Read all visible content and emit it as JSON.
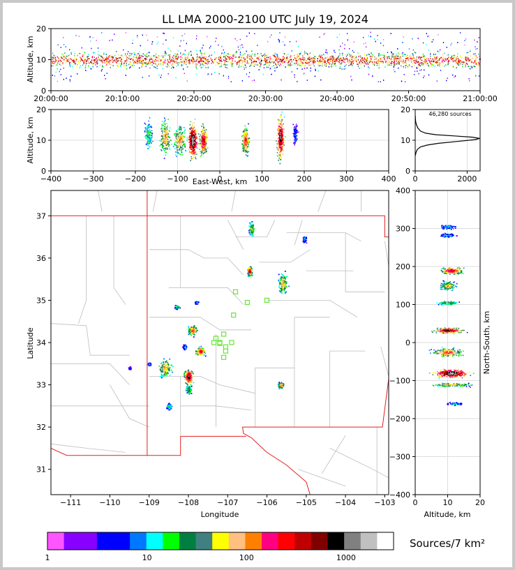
{
  "title": "LL LMA 2000-2100 UTC July 19, 2024",
  "colorbar": {
    "label": "Sources/7 km²",
    "tick_labels": [
      "1",
      "10",
      "100",
      "1000"
    ],
    "tick_values": [
      1,
      10,
      100,
      1000
    ],
    "colors": [
      "#ff55ff",
      "#8800ff",
      "#8800ff",
      "#0000ff",
      "#0000ff",
      "#0077ff",
      "#00ffff",
      "#00ff00",
      "#008040",
      "#408080",
      "#ffff00",
      "#ffc080",
      "#ff8000",
      "#ff0080",
      "#ff0000",
      "#c00000",
      "#800000",
      "#000000",
      "#808080",
      "#c0c0c0",
      "#ffffff"
    ]
  },
  "chart_data": [
    {
      "id": "time-altitude",
      "type": "heatmap",
      "ylabel": "Altitude, km",
      "xlim": [
        "20:00:00",
        "21:00:00"
      ],
      "ylim": [
        0,
        20
      ],
      "x_ticks": [
        "20:00:00",
        "20:10:00",
        "20:20:00",
        "20:30:00",
        "20:40:00",
        "20:50:00",
        "21:00:00"
      ],
      "y_ticks": [
        0,
        10,
        20
      ],
      "density": [
        {
          "x": "20:00-21:00",
          "y": [
            5,
            15
          ],
          "peak_altitude": 10
        }
      ]
    },
    {
      "id": "ew-altitude",
      "type": "heatmap",
      "xlabel": "East-West, km",
      "ylabel": "Altitude, km",
      "xlim": [
        -400,
        400
      ],
      "ylim": [
        0,
        20
      ],
      "x_ticks": [
        -400,
        -300,
        -200,
        -100,
        0,
        100,
        200,
        300,
        400
      ],
      "y_ticks": [
        0,
        10,
        20
      ],
      "clusters": [
        {
          "x": -170,
          "y": 12,
          "spread_x": 8,
          "spread_y": 4,
          "intensity": 0.4
        },
        {
          "x": -130,
          "y": 11,
          "spread_x": 12,
          "spread_y": 5,
          "intensity": 0.6
        },
        {
          "x": -95,
          "y": 10,
          "spread_x": 12,
          "spread_y": 4,
          "intensity": 0.6
        },
        {
          "x": -65,
          "y": 10,
          "spread_x": 10,
          "spread_y": 5,
          "intensity": 1.0
        },
        {
          "x": -40,
          "y": 10,
          "spread_x": 8,
          "spread_y": 4,
          "intensity": 0.8
        },
        {
          "x": 60,
          "y": 10,
          "spread_x": 8,
          "spread_y": 4,
          "intensity": 0.7
        },
        {
          "x": 143,
          "y": 11,
          "spread_x": 8,
          "spread_y": 6,
          "intensity": 0.9
        },
        {
          "x": 178,
          "y": 12,
          "spread_x": 5,
          "spread_y": 3,
          "intensity": 0.2
        }
      ]
    },
    {
      "id": "altitude-histogram",
      "type": "line",
      "annotation": "46,280 sources",
      "xlim": [
        0,
        2500
      ],
      "ylim": [
        0,
        20
      ],
      "x_ticks": [
        0,
        2000
      ],
      "y_ticks": [
        0,
        10,
        20
      ],
      "x": [
        5,
        30,
        80,
        200,
        450,
        900,
        1600,
        2300,
        2480,
        2200,
        1500,
        800,
        400,
        200,
        100,
        50,
        20,
        8,
        3
      ],
      "y": [
        5,
        6,
        7,
        7.8,
        8.4,
        9,
        9.6,
        10.2,
        10.6,
        11,
        11.4,
        11.8,
        12.3,
        13,
        14,
        15,
        16,
        17,
        18
      ]
    },
    {
      "id": "plan-view",
      "type": "heatmap",
      "xlabel": "Longitude",
      "ylabel": "Latitude",
      "xlim": [
        -111.5,
        -102.9
      ],
      "ylim": [
        30.4,
        37.6
      ],
      "x_ticks": [
        -111,
        -110,
        -109,
        -108,
        -107,
        -106,
        -105,
        -104,
        -103
      ],
      "y_ticks": [
        31,
        32,
        33,
        34,
        35,
        36,
        37
      ],
      "clusters": [
        {
          "lon": -108.6,
          "lat": 33.4,
          "spread_lon": 0.15,
          "spread_lat": 0.2,
          "intensity": 0.6
        },
        {
          "lon": -108.0,
          "lat": 33.2,
          "spread_lon": 0.1,
          "spread_lat": 0.15,
          "intensity": 0.9
        },
        {
          "lon": -107.9,
          "lat": 34.3,
          "spread_lon": 0.1,
          "spread_lat": 0.1,
          "intensity": 0.7
        },
        {
          "lon": -107.7,
          "lat": 33.8,
          "spread_lon": 0.1,
          "spread_lat": 0.08,
          "intensity": 0.8
        },
        {
          "lon": -108.0,
          "lat": 32.9,
          "spread_lon": 0.06,
          "spread_lat": 0.1,
          "intensity": 0.5
        },
        {
          "lon": -108.5,
          "lat": 32.5,
          "spread_lon": 0.06,
          "spread_lat": 0.06,
          "intensity": 0.4
        },
        {
          "lon": -108.3,
          "lat": 34.85,
          "spread_lon": 0.05,
          "spread_lat": 0.04,
          "intensity": 0.4
        },
        {
          "lon": -106.45,
          "lat": 35.7,
          "spread_lon": 0.05,
          "spread_lat": 0.1,
          "intensity": 0.8
        },
        {
          "lon": -105.6,
          "lat": 35.4,
          "spread_lon": 0.1,
          "spread_lat": 0.2,
          "intensity": 0.6
        },
        {
          "lon": -105.65,
          "lat": 33.0,
          "spread_lon": 0.06,
          "spread_lat": 0.06,
          "intensity": 0.7
        },
        {
          "lon": -106.4,
          "lat": 36.7,
          "spread_lon": 0.06,
          "spread_lat": 0.15,
          "intensity": 0.5
        },
        {
          "lon": -105.05,
          "lat": 36.45,
          "spread_lon": 0.04,
          "spread_lat": 0.06,
          "intensity": 0.3
        },
        {
          "lon": -109.0,
          "lat": 33.5,
          "spread_lon": 0.03,
          "spread_lat": 0.03,
          "intensity": 0.3
        },
        {
          "lon": -109.5,
          "lat": 33.4,
          "spread_lon": 0.03,
          "spread_lat": 0.03,
          "intensity": 0.2
        },
        {
          "lon": -108.1,
          "lat": 33.9,
          "spread_lon": 0.04,
          "spread_lat": 0.05,
          "intensity": 0.3
        },
        {
          "lon": -107.8,
          "lat": 34.95,
          "spread_lon": 0.04,
          "spread_lat": 0.03,
          "intensity": 0.3
        }
      ],
      "stations": [
        {
          "lon": -106.8,
          "lat": 35.2
        },
        {
          "lon": -106.5,
          "lat": 34.95
        },
        {
          "lon": -106.0,
          "lat": 35.0
        },
        {
          "lon": -106.85,
          "lat": 34.65
        },
        {
          "lon": -107.3,
          "lat": 34.1
        },
        {
          "lon": -107.1,
          "lat": 34.2
        },
        {
          "lon": -107.35,
          "lat": 34.0
        },
        {
          "lon": -107.2,
          "lat": 34.0
        },
        {
          "lon": -107.05,
          "lat": 33.9
        },
        {
          "lon": -106.9,
          "lat": 34.0
        },
        {
          "lon": -107.05,
          "lat": 33.8
        },
        {
          "lon": -107.1,
          "lat": 33.65
        },
        {
          "lon": -107.2,
          "lat": 33.98
        }
      ]
    },
    {
      "id": "altitude-ns",
      "type": "heatmap",
      "xlabel": "Altitude, km",
      "ylabel": "North-South, km",
      "xlim": [
        0,
        20
      ],
      "ylim": [
        -400,
        400
      ],
      "x_ticks": [
        0,
        10,
        20
      ],
      "y_ticks": [
        -400,
        -300,
        -200,
        -100,
        0,
        100,
        200,
        300,
        400
      ],
      "clusters": [
        {
          "x": 10,
          "y": 305,
          "spread_x": 2,
          "spread_y": 5,
          "intensity": 0.3
        },
        {
          "x": 10,
          "y": 283,
          "spread_x": 2,
          "spread_y": 4,
          "intensity": 0.3
        },
        {
          "x": 11,
          "y": 190,
          "spread_x": 3,
          "spread_y": 8,
          "intensity": 0.8
        },
        {
          "x": 10,
          "y": 150,
          "spread_x": 2,
          "spread_y": 10,
          "intensity": 0.6
        },
        {
          "x": 10,
          "y": 105,
          "spread_x": 3,
          "spread_y": 4,
          "intensity": 0.5
        },
        {
          "x": 10,
          "y": 33,
          "spread_x": 4,
          "spread_y": 6,
          "intensity": 0.9
        },
        {
          "x": 10,
          "y": -25,
          "spread_x": 4,
          "spread_y": 10,
          "intensity": 0.7
        },
        {
          "x": 11,
          "y": -80,
          "spread_x": 5,
          "spread_y": 10,
          "intensity": 1.0
        },
        {
          "x": 11,
          "y": -110,
          "spread_x": 5,
          "spread_y": 4,
          "intensity": 0.6
        },
        {
          "x": 12,
          "y": -160,
          "spread_x": 2,
          "spread_y": 3,
          "intensity": 0.3
        }
      ]
    }
  ]
}
